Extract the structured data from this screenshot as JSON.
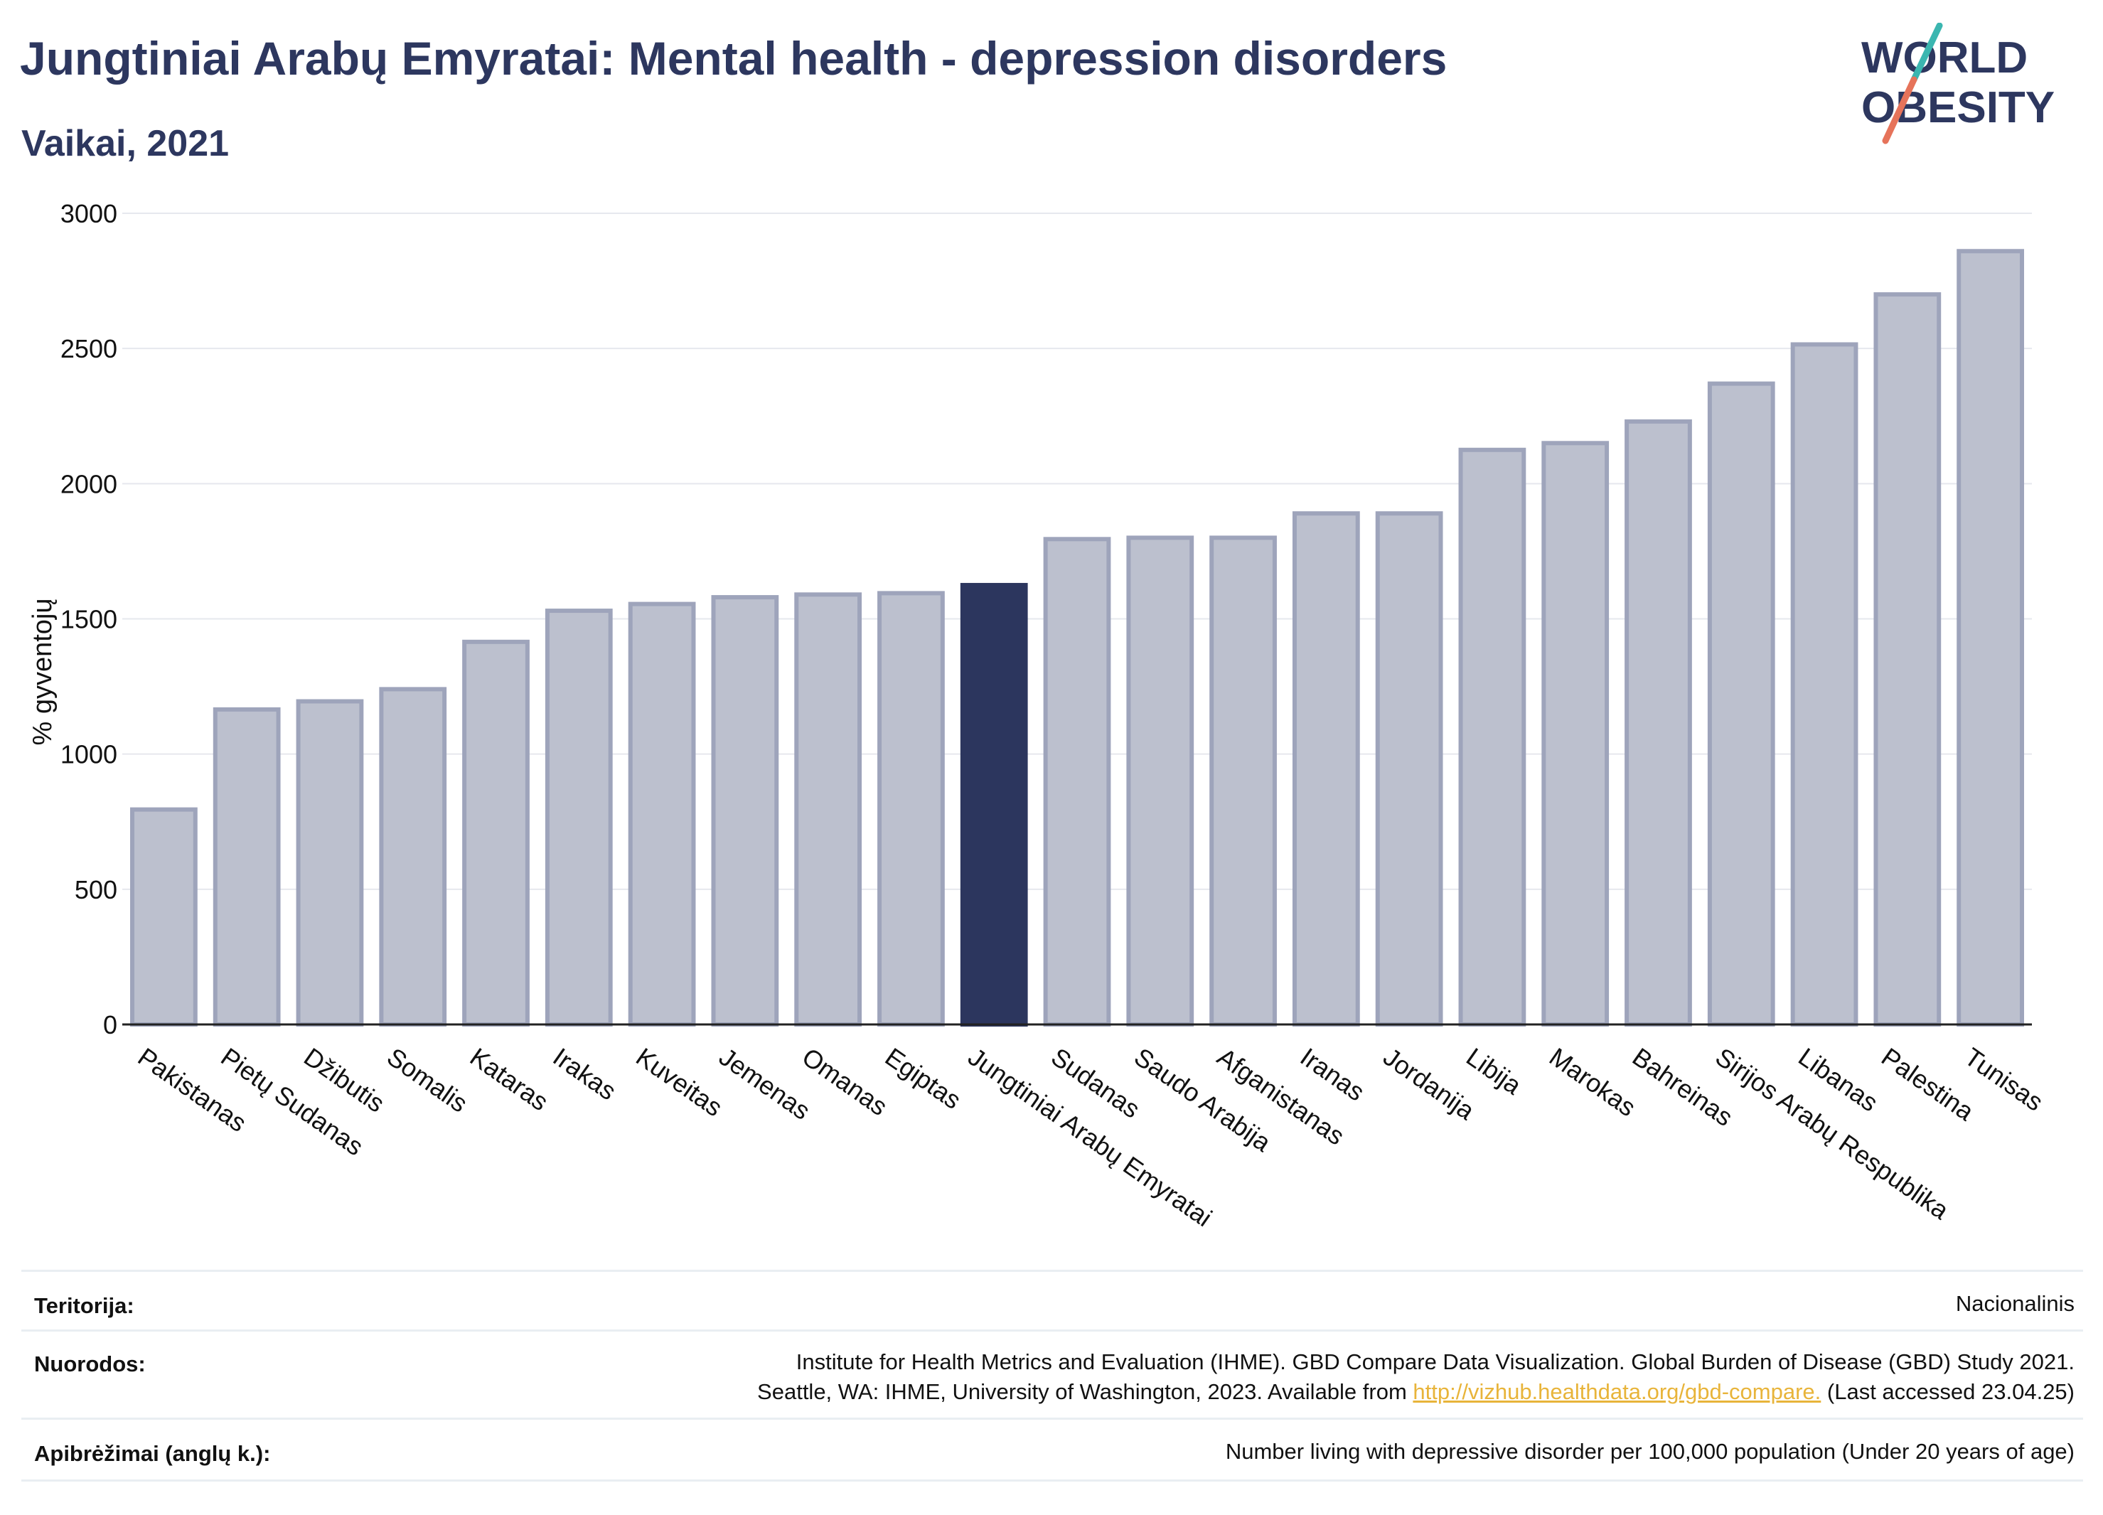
{
  "header": {
    "title": "Jungtiniai Arabų Emyratai: Mental health - depression disorders",
    "subtitle": "Vaikai, 2021"
  },
  "logo": {
    "line1": "WORLD",
    "line2": "OBESITY"
  },
  "chart_data": {
    "type": "bar",
    "ylabel": "% gyventojų",
    "ylim": [
      0,
      3000
    ],
    "yticks": [
      0,
      500,
      1000,
      1500,
      2000,
      2500,
      3000
    ],
    "grid": true,
    "highlight": "Jungtiniai Arabų Emyratai",
    "colors": {
      "bar": "#bcc0ce",
      "bar_edge": "#9ea4bb",
      "highlight": "#2c365e"
    },
    "categories": [
      "Pakistanas",
      "Pietų Sudanas",
      "Džibutis",
      "Somalis",
      "Kataras",
      "Irakas",
      "Kuveitas",
      "Jemenas",
      "Omanas",
      "Egiptas",
      "Jungtiniai Arabų Emyratai",
      "Sudanas",
      "Saudo Arabija",
      "Afganistanas",
      "Iranas",
      "Jordanija",
      "Libija",
      "Marokas",
      "Bahreinas",
      "Sirijos Arabų Respublika",
      "Libanas",
      "Palestina",
      "Tunisas"
    ],
    "values": [
      795,
      1165,
      1195,
      1240,
      1415,
      1530,
      1555,
      1580,
      1590,
      1595,
      1625,
      1795,
      1800,
      1800,
      1890,
      1890,
      2125,
      2150,
      2230,
      2370,
      2515,
      2700,
      2860
    ]
  },
  "footer": {
    "territory_label": "Teritorija:",
    "territory_value": "Nacionalinis",
    "refs_label": "Nuorodos:",
    "refs_line1": "Institute for Health Metrics and Evaluation (IHME). GBD Compare Data Visualization. Global Burden of Disease (GBD) Study 2021.",
    "refs_line2_prefix": "Seattle, WA: IHME, University of Washington, 2023. Available from ",
    "refs_link": "http://vizhub.healthdata.org/gbd-compare.",
    "refs_line2_suffix": " (Last accessed 23.04.25)",
    "definitions_label": "Apibrėžimai (anglų k.):",
    "definitions_value": "Number living with depressive disorder per 100,000 population (Under 20 years of age)"
  }
}
